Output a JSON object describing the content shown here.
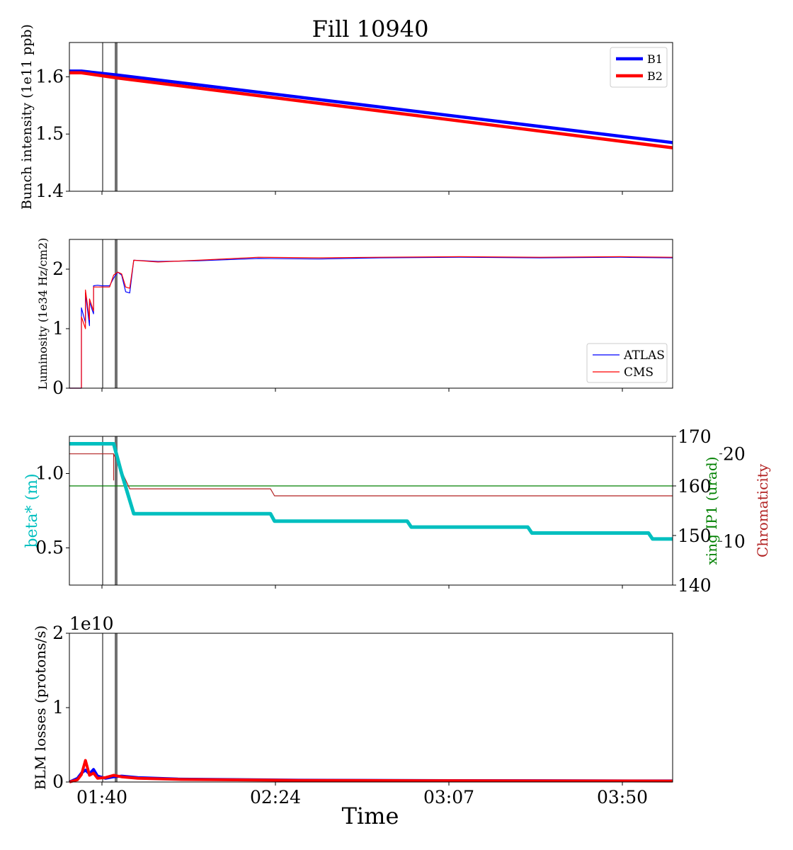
{
  "figure": {
    "title": "Fill 10940",
    "xlabel": "Time"
  },
  "colors": {
    "b1": "#0000ff",
    "b2": "#ff0000",
    "beta": "#00bfbf",
    "xing": "#008000",
    "chroma": "#b22222",
    "marker": "#707070"
  },
  "chart_data": [
    {
      "type": "line",
      "id": "intensity",
      "ylabel": "Bunch intensity (1e11 ppb)",
      "ylim": [
        1.4,
        1.66
      ],
      "yticks": [
        1.4,
        1.5,
        1.6
      ],
      "ytick_labels": [
        "1.4",
        "1.5",
        "1.6"
      ],
      "legend": {
        "position": "top-right",
        "entries": [
          "B1",
          "B2"
        ]
      },
      "series": [
        {
          "name": "B1",
          "x": [
            "01:33",
            "01:36",
            "01:45",
            "04:03"
          ],
          "values": [
            1.61,
            1.61,
            1.603,
            1.485
          ]
        },
        {
          "name": "B2",
          "x": [
            "01:33",
            "01:36",
            "01:45",
            "04:03"
          ],
          "values": [
            1.607,
            1.607,
            1.598,
            1.476
          ]
        }
      ]
    },
    {
      "type": "line",
      "id": "luminosity",
      "ylabel": "Luminosity (1e34 Hz/cm2)",
      "ylim": [
        0,
        2.5
      ],
      "yticks": [
        0,
        1,
        2
      ],
      "ytick_labels": [
        "0",
        "1",
        "2"
      ],
      "legend": {
        "position": "bottom-right",
        "entries": [
          "ATLAS",
          "CMS"
        ]
      },
      "series": [
        {
          "name": "ATLAS",
          "x": [
            "01:33",
            "01:36",
            "01:36",
            "01:37",
            "01:37",
            "01:38",
            "01:38",
            "01:39",
            "01:39",
            "01:40",
            "01:41",
            "01:43",
            "01:44",
            "01:45",
            "01:46",
            "01:47",
            "01:48",
            "01:49",
            "01:55",
            "02:05",
            "02:20",
            "02:35",
            "02:50",
            "03:10",
            "03:30",
            "03:50",
            "04:03"
          ],
          "values": [
            0,
            0,
            1.35,
            1.1,
            1.6,
            1.05,
            1.45,
            1.25,
            1.72,
            1.73,
            1.72,
            1.72,
            1.85,
            1.95,
            1.9,
            1.62,
            1.6,
            2.15,
            2.13,
            2.14,
            2.18,
            2.17,
            2.19,
            2.2,
            2.19,
            2.2,
            2.19
          ]
        },
        {
          "name": "CMS",
          "x": [
            "01:33",
            "01:36",
            "01:36",
            "01:37",
            "01:37",
            "01:38",
            "01:38",
            "01:39",
            "01:39",
            "01:40",
            "01:41",
            "01:43",
            "01:44",
            "01:45",
            "01:46",
            "01:47",
            "01:48",
            "01:49",
            "01:55",
            "02:05",
            "02:20",
            "02:35",
            "02:50",
            "03:10",
            "03:30",
            "03:50",
            "04:03"
          ],
          "values": [
            0,
            0,
            1.2,
            1.0,
            1.65,
            1.15,
            1.5,
            1.3,
            1.7,
            1.7,
            1.7,
            1.7,
            1.9,
            1.95,
            1.92,
            1.7,
            1.68,
            2.15,
            2.12,
            2.15,
            2.2,
            2.19,
            2.2,
            2.21,
            2.2,
            2.21,
            2.2
          ]
        }
      ]
    },
    {
      "type": "line",
      "id": "optics",
      "ylabel": "beta* (m)",
      "ylim": [
        0.25,
        1.25
      ],
      "yticks": [
        0.5,
        1.0
      ],
      "ytick_labels": [
        "0.5",
        "1.0"
      ],
      "y2label": "xing IP1 (urad)",
      "y2lim": [
        140,
        170
      ],
      "y2ticks": [
        140,
        150,
        160,
        170
      ],
      "y2tick_labels": [
        "140",
        "150",
        "160",
        "170"
      ],
      "y3label": "Chromaticity",
      "y3lim": [
        5,
        22
      ],
      "y3ticks": [
        10,
        20
      ],
      "y3tick_labels": [
        "10",
        "20"
      ],
      "series": [
        {
          "name": "beta*",
          "axis": "left",
          "x": [
            "01:33",
            "01:44",
            "01:46",
            "01:49",
            "02:23",
            "02:24",
            "02:57",
            "02:58",
            "03:27",
            "03:28",
            "03:57",
            "03:58",
            "04:03"
          ],
          "values": [
            1.2,
            1.2,
            1.0,
            0.73,
            0.73,
            0.68,
            0.68,
            0.64,
            0.64,
            0.6,
            0.6,
            0.56,
            0.56
          ]
        },
        {
          "name": "xing IP1",
          "axis": "right",
          "x": [
            "01:33",
            "04:03"
          ],
          "values": [
            160,
            160
          ]
        },
        {
          "name": "Chromaticity",
          "axis": "right2",
          "x": [
            "01:33",
            "01:44",
            "01:44",
            "01:44",
            "01:48",
            "02:23",
            "02:24",
            "04:03"
          ],
          "values": [
            20,
            20,
            17,
            20,
            16,
            16,
            15.2,
            15.2
          ]
        }
      ]
    },
    {
      "type": "line",
      "id": "losses",
      "ylabel": "BLM losses (protons/s)",
      "offset_text": "1e10",
      "ylim": [
        0,
        20000000000.0
      ],
      "yticks": [
        0,
        10000000000.0,
        20000000000.0
      ],
      "ytick_labels": [
        "0",
        "1",
        "2"
      ],
      "series": [
        {
          "name": "B1",
          "x": [
            "01:33",
            "01:35",
            "01:36",
            "01:37",
            "01:38",
            "01:39",
            "01:40",
            "01:42",
            "01:44",
            "01:46",
            "01:50",
            "02:00",
            "02:30",
            "03:00",
            "04:03"
          ],
          "values": [
            0,
            500000000.0,
            1200000000.0,
            1600000000.0,
            1100000000.0,
            1700000000.0,
            800000000.0,
            500000000.0,
            700000000.0,
            800000000.0,
            600000000.0,
            400000000.0,
            250000000.0,
            200000000.0,
            150000000.0
          ]
        },
        {
          "name": "B2",
          "x": [
            "01:33",
            "01:35",
            "01:36",
            "01:37",
            "01:38",
            "01:39",
            "01:40",
            "01:42",
            "01:44",
            "01:46",
            "01:50",
            "02:00",
            "02:30",
            "03:00",
            "04:03"
          ],
          "values": [
            0,
            300000000.0,
            1000000000.0,
            2900000000.0,
            900000000.0,
            1200000000.0,
            500000000.0,
            600000000.0,
            900000000.0,
            700000000.0,
            500000000.0,
            350000000.0,
            220000000.0,
            180000000.0,
            130000000.0
          ]
        }
      ]
    }
  ],
  "x_axis": {
    "xlim": [
      "01:33",
      "04:03"
    ],
    "ticks": [
      "01:40",
      "02:24",
      "03:07",
      "03:50"
    ],
    "markers": [
      "01:40",
      "01:44"
    ]
  }
}
